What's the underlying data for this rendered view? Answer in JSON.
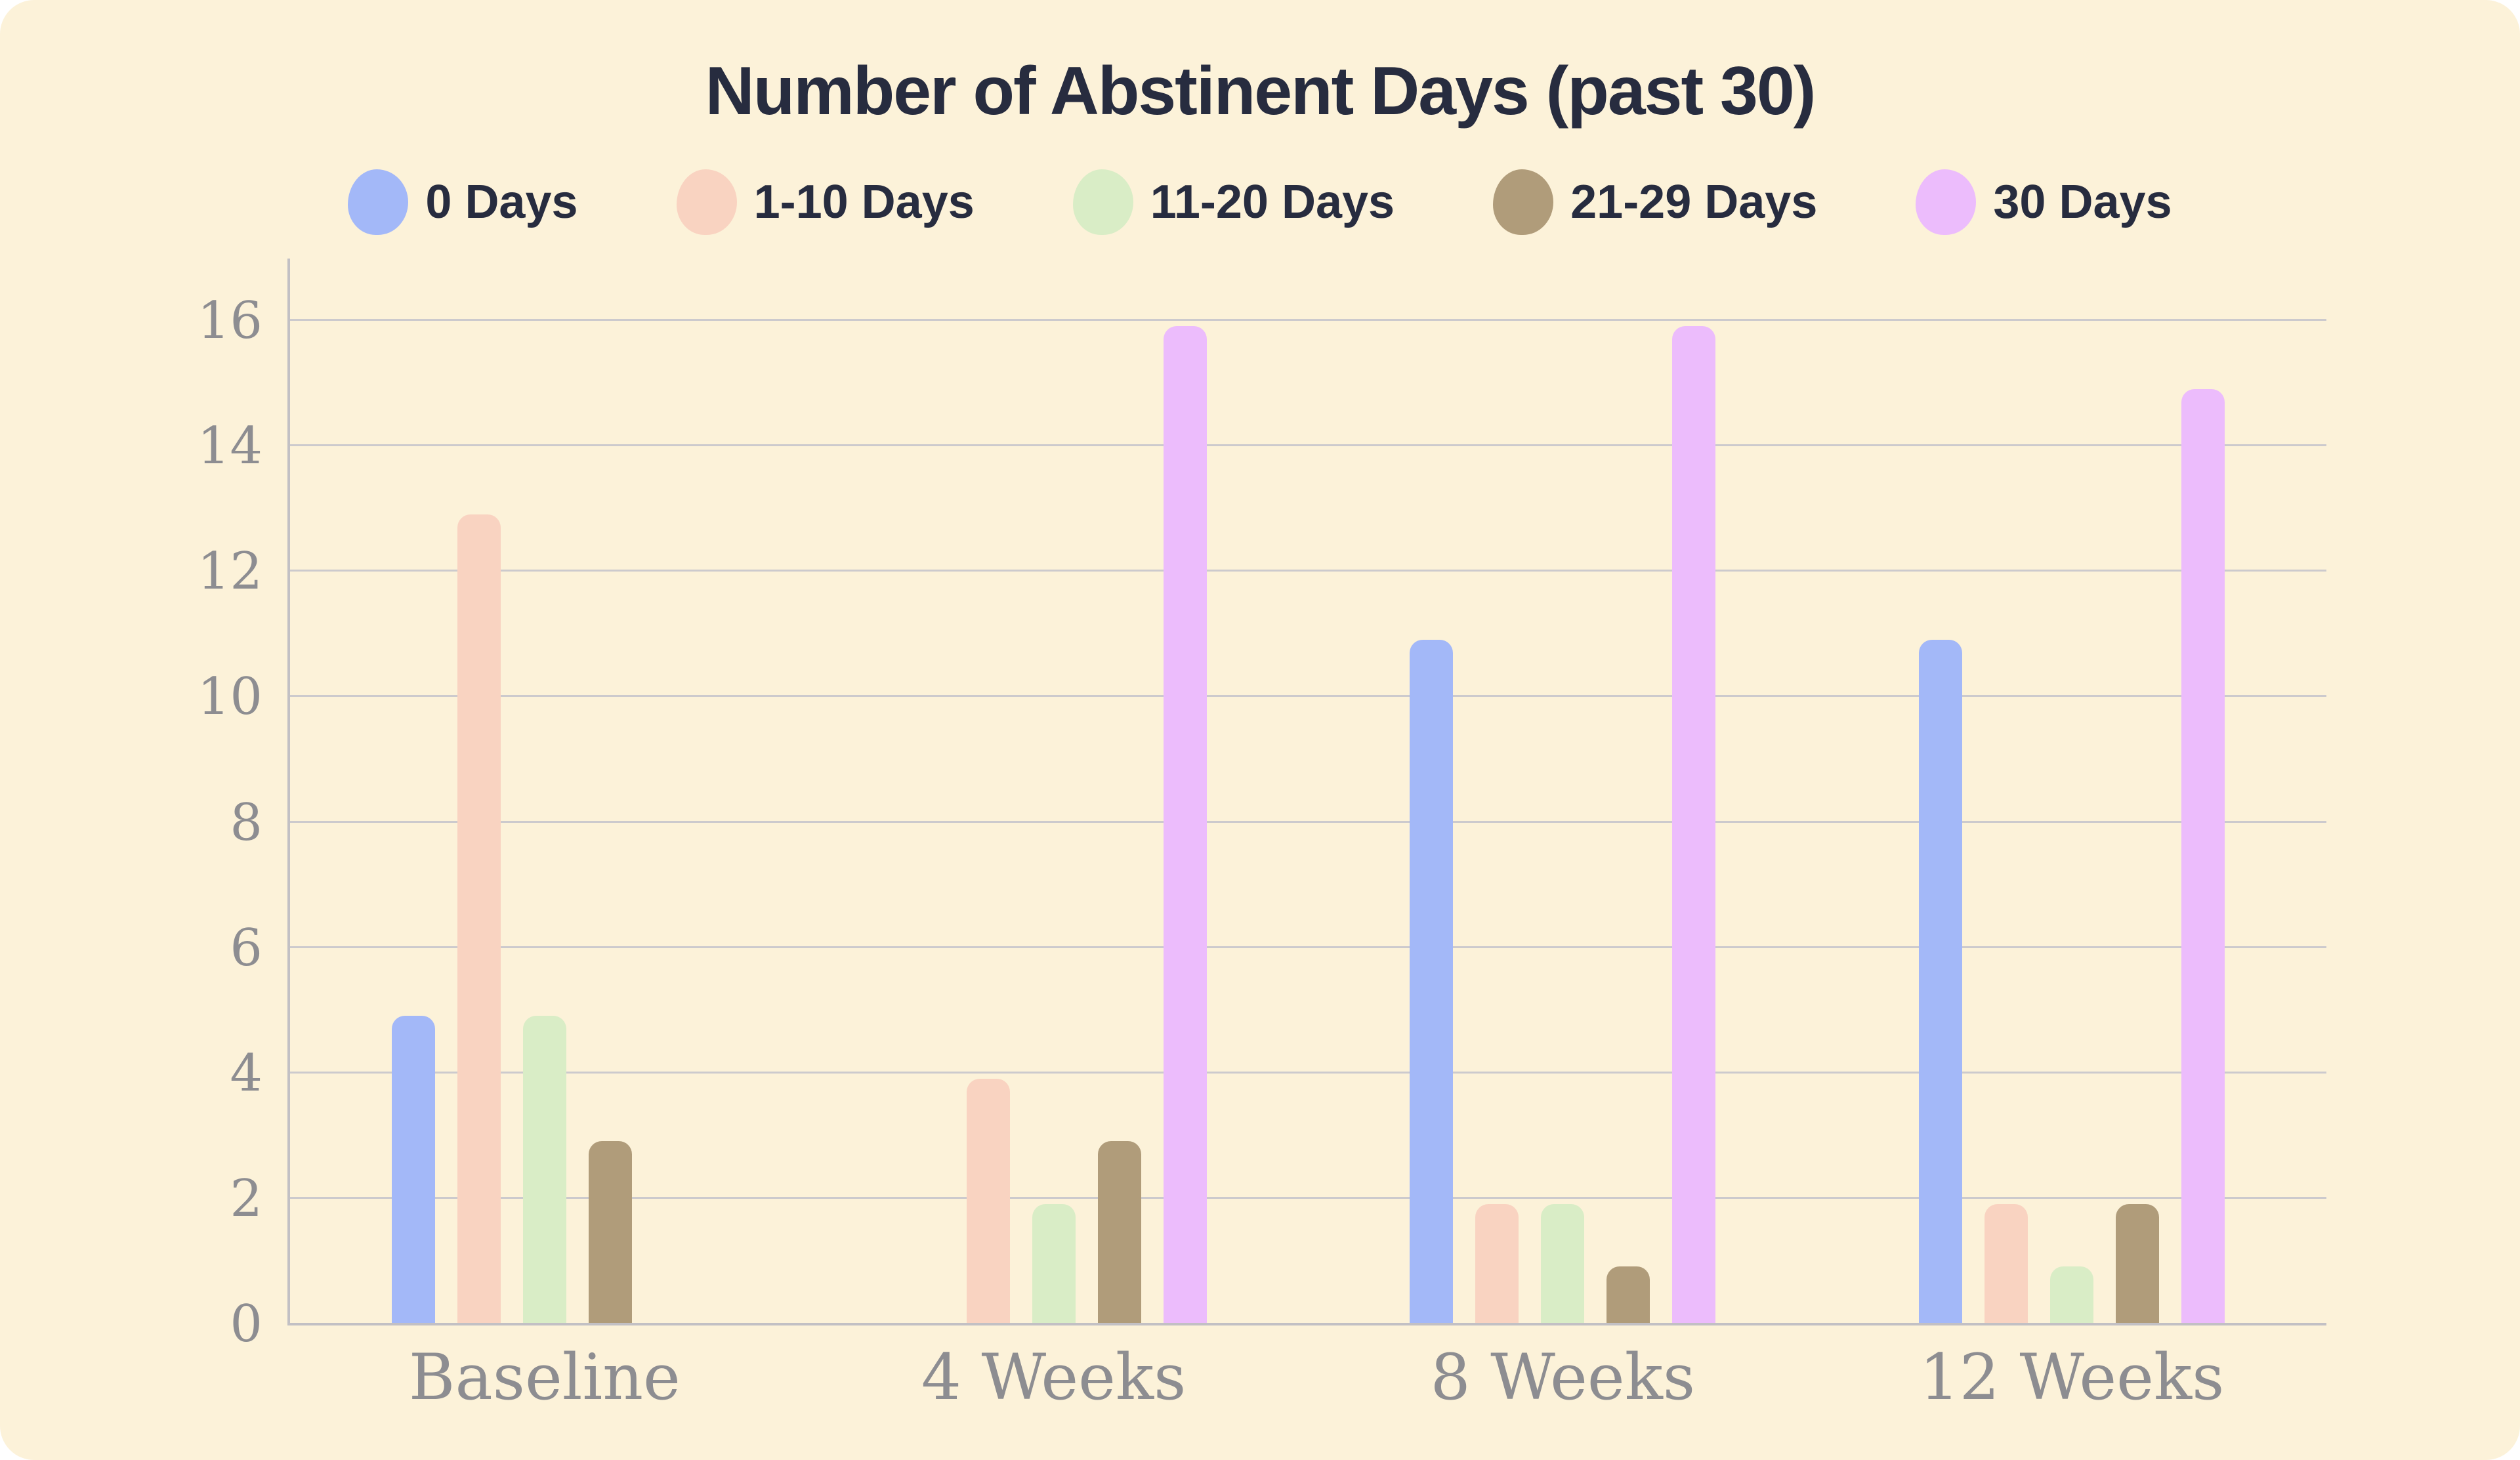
{
  "title": "Number of Abstinent Days (past 30)",
  "chart_data": {
    "type": "bar",
    "title": "Number of Abstinent Days (past 30)",
    "categories": [
      "Baseline",
      "4 Weeks",
      "8 Weeks",
      "12 Weeks"
    ],
    "series": [
      {
        "name": "0 Days",
        "color": "#a3b8f8",
        "values": [
          5,
          0,
          11,
          11
        ]
      },
      {
        "name": "1-10 Days",
        "color": "#f9d3c1",
        "values": [
          13,
          4,
          2,
          2
        ]
      },
      {
        "name": "11-20 Days",
        "color": "#d9edc6",
        "values": [
          5,
          2,
          2,
          1
        ]
      },
      {
        "name": "21-29 Days",
        "color": "#b09c7a",
        "values": [
          3,
          3,
          1,
          2
        ]
      },
      {
        "name": "30 Days",
        "color": "#ecbcfc",
        "values": [
          0,
          16,
          16,
          15
        ]
      }
    ],
    "xlabel": "",
    "ylabel": "",
    "ylim": [
      0,
      16
    ],
    "yticks": [
      0,
      2,
      4,
      6,
      8,
      10,
      12,
      14,
      16
    ],
    "grid": true,
    "legend_position": "top",
    "note": "zero values are drawn as absent bars; bars have rounded tops"
  },
  "colors": {
    "card_background": "#fcf2d9",
    "page_background": "#ffffff",
    "title_ink": "#272c3f",
    "axis_text": "#8d8d91",
    "gridline": "#cccacd",
    "axis_line": "#c2c0c4"
  }
}
